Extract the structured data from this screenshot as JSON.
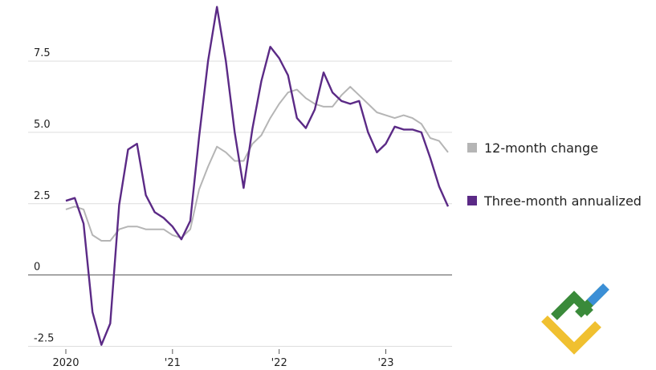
{
  "chart_data": {
    "type": "line",
    "categories": [
      "2020",
      null,
      null,
      null,
      null,
      null,
      null,
      null,
      null,
      null,
      null,
      null,
      "'21",
      null,
      null,
      null,
      null,
      null,
      null,
      null,
      null,
      null,
      null,
      null,
      "'22",
      null,
      null,
      null,
      null,
      null,
      null,
      null,
      null,
      null,
      null,
      null,
      "'23",
      null,
      null,
      null,
      null,
      null,
      null,
      null
    ],
    "series": [
      {
        "name": "12-month change",
        "color": "#b5b5b5",
        "values": [
          2.3,
          2.4,
          2.3,
          1.4,
          1.2,
          1.2,
          1.6,
          1.7,
          1.7,
          1.6,
          1.6,
          1.6,
          1.4,
          1.3,
          1.6,
          3.0,
          3.8,
          4.5,
          4.3,
          4.0,
          4.0,
          4.6,
          4.9,
          5.5,
          6.0,
          6.4,
          6.5,
          6.2,
          6.0,
          5.9,
          5.9,
          6.3,
          6.6,
          6.3,
          6.0,
          5.7,
          5.6,
          5.5,
          5.6,
          5.5,
          5.3,
          4.8,
          4.7,
          4.3
        ]
      },
      {
        "name": "Three-month annualized",
        "color": "#5b2a86",
        "values": [
          2.6,
          2.7,
          1.8,
          -1.3,
          -2.45,
          -1.7,
          2.45,
          4.4,
          4.6,
          2.8,
          2.2,
          2.0,
          1.7,
          1.25,
          1.9,
          4.85,
          7.5,
          9.4,
          7.5,
          5.0,
          3.05,
          5.15,
          6.8,
          8.0,
          7.6,
          7.0,
          5.5,
          5.15,
          5.8,
          7.1,
          6.4,
          6.1,
          6.0,
          6.1,
          5.0,
          4.3,
          4.6,
          5.2,
          5.1,
          5.1,
          5.0,
          4.1,
          3.1,
          2.4
        ]
      }
    ],
    "ylim": [
      -2.6,
      9.5
    ],
    "yticks": [
      -2.5,
      0,
      2.5,
      {
        "value": 5,
        "label": "5.0"
      },
      7.5
    ],
    "grid": true
  }
}
